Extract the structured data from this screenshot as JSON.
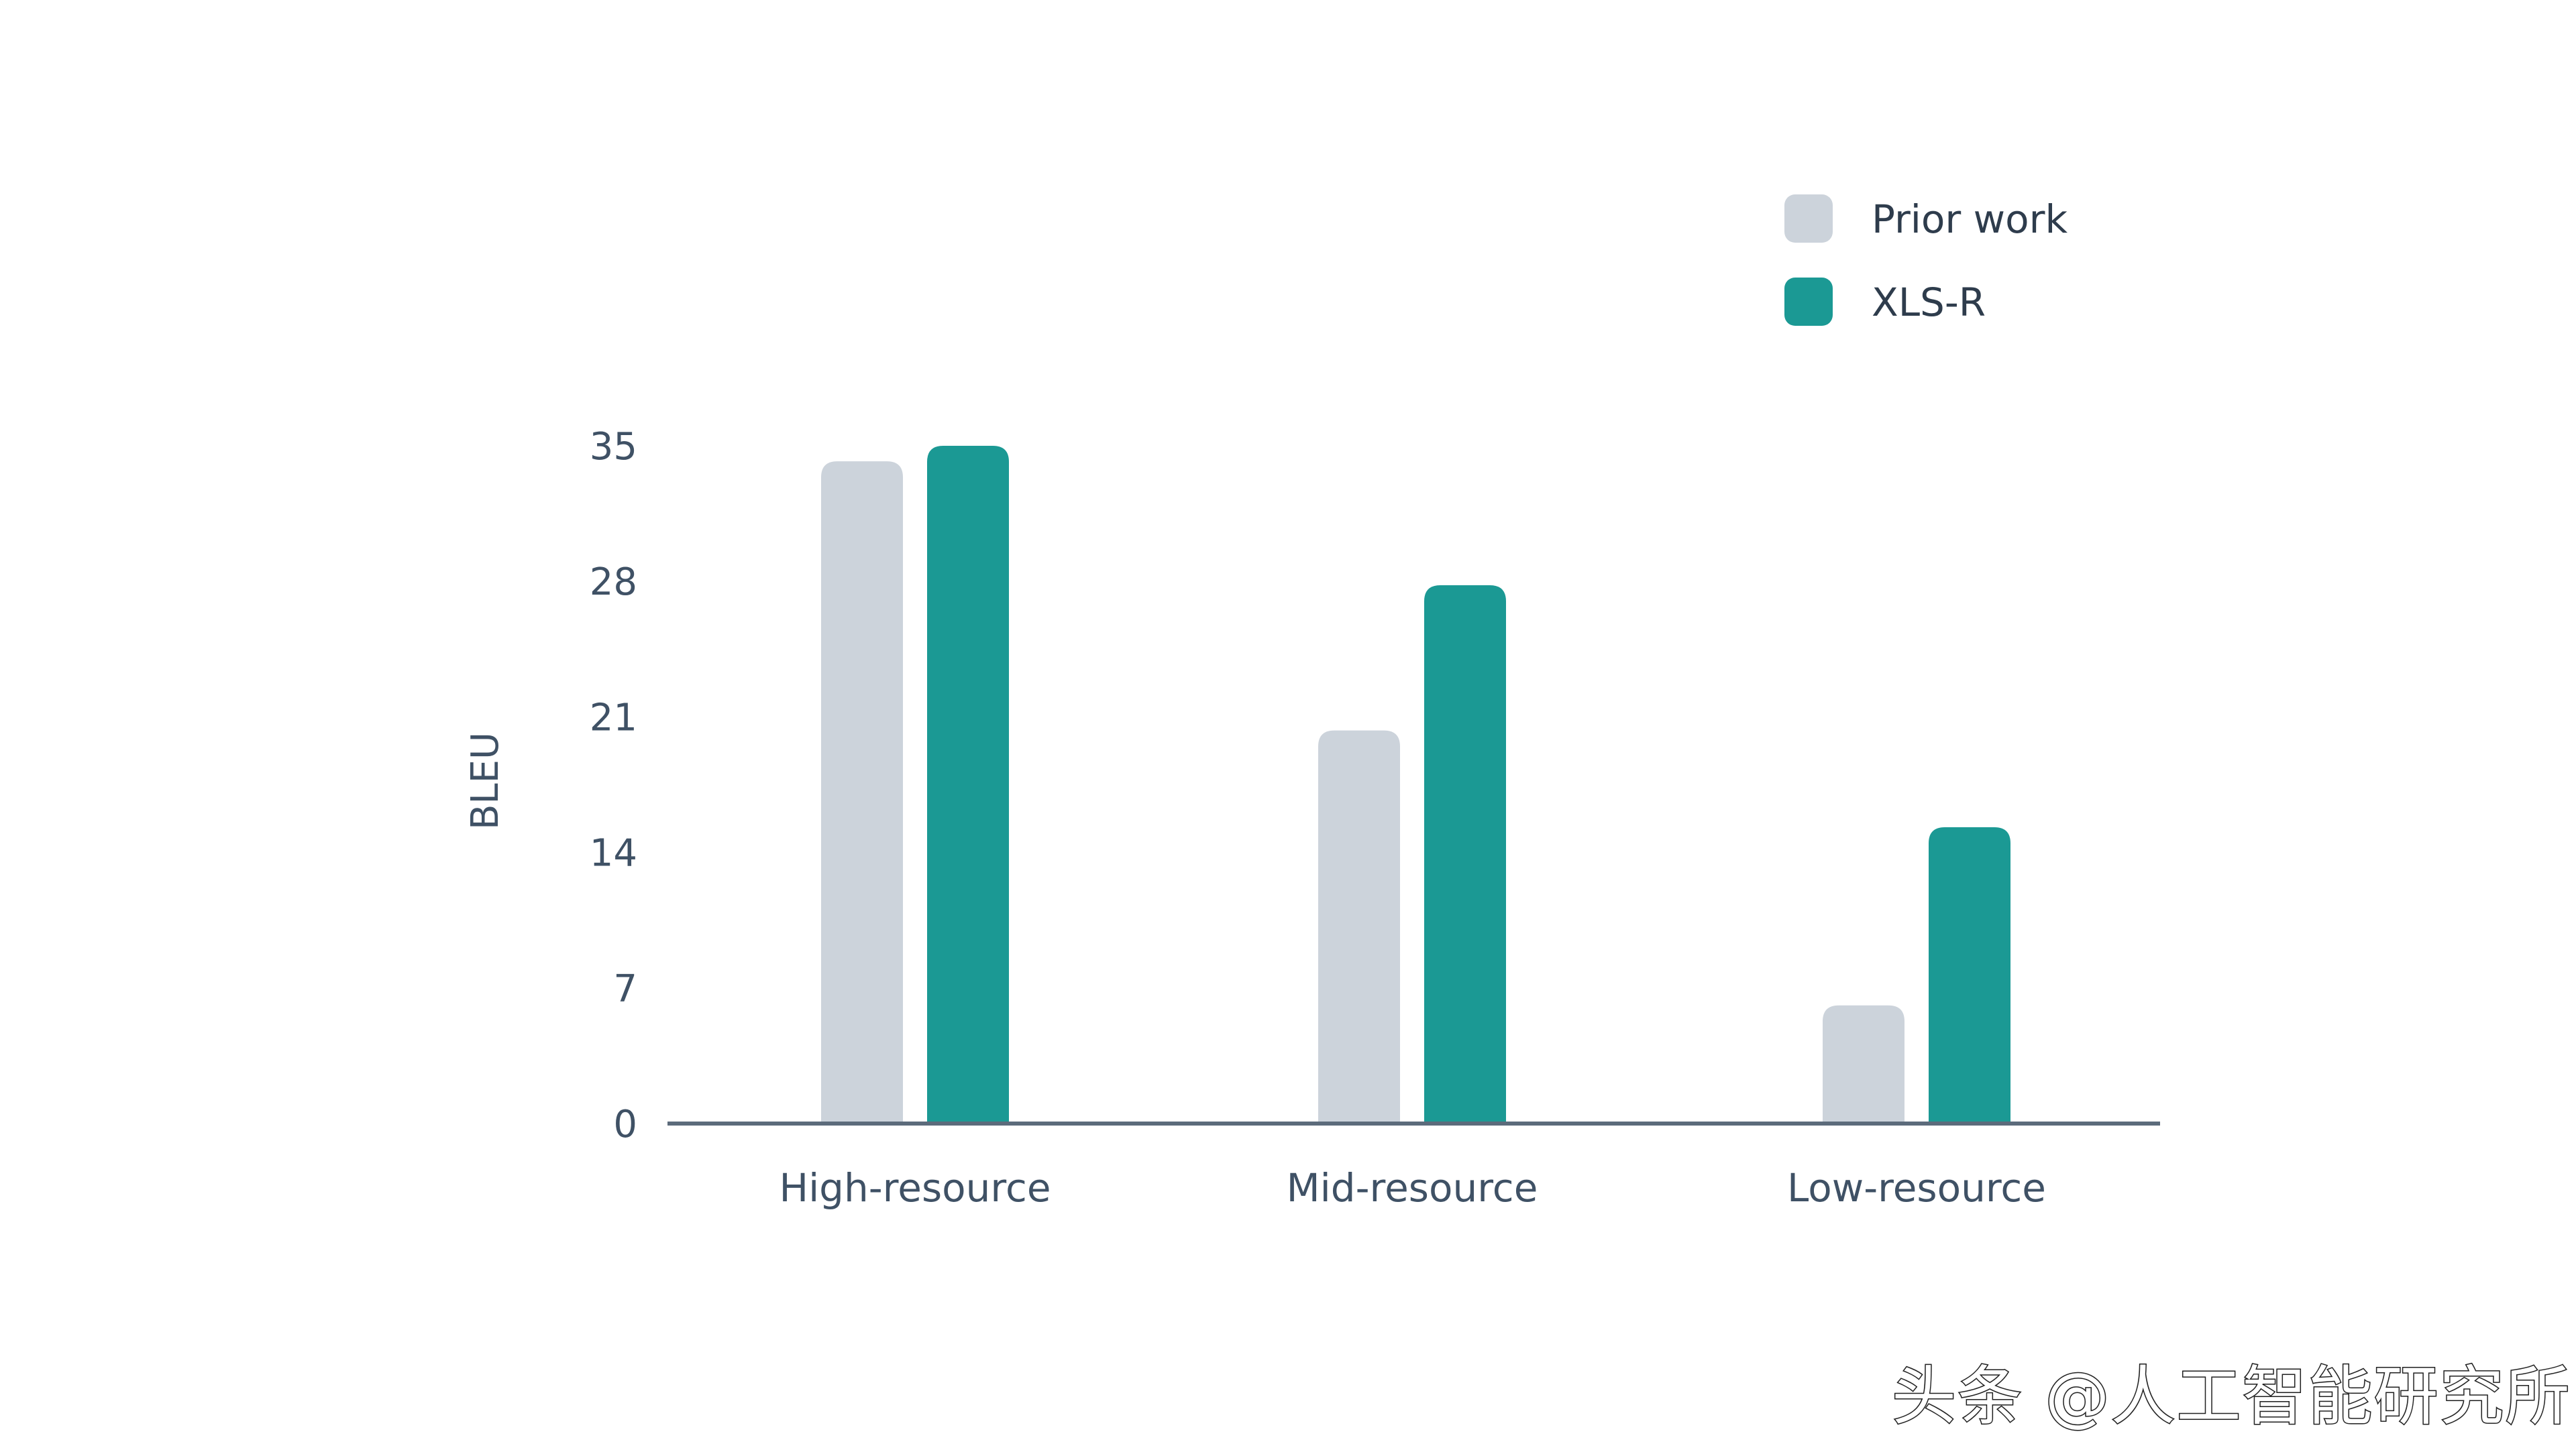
{
  "colors": {
    "prior_work": "#ccd3db",
    "xls_r": "#1b9994",
    "axis": "#5c6b7b",
    "text": "#3f5165"
  },
  "chart_data": {
    "type": "bar",
    "categories": [
      "High-resource",
      "Mid-resource",
      "Low-resource"
    ],
    "series": [
      {
        "name": "Prior work",
        "values": [
          34.2,
          20.3,
          6.1
        ]
      },
      {
        "name": "XLS-R",
        "values": [
          35.0,
          27.8,
          15.3
        ]
      }
    ],
    "ylabel": "BLEU",
    "xlabel": "",
    "title": "",
    "ylim": [
      0,
      35
    ],
    "yticks": [
      0,
      7,
      14,
      21,
      28,
      35
    ],
    "grid": false,
    "legend_position": "top-right"
  },
  "watermark": {
    "text": "头条 @人工智能研究所"
  }
}
